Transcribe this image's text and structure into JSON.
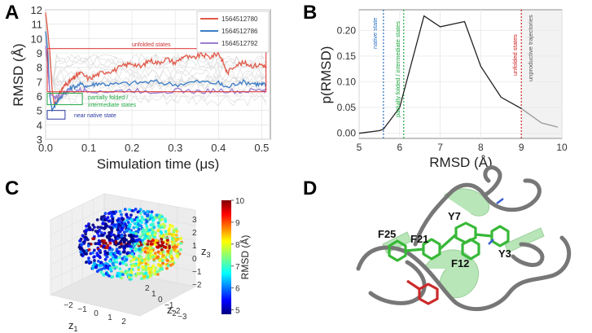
{
  "panels": {
    "a": "A",
    "b": "B",
    "c": "C",
    "d": "D"
  },
  "chart_data": [
    {
      "type": "line",
      "panel": "A",
      "xlabel": "Simulation time (μs)",
      "ylabel": "RMSD (Å)",
      "xlim": [
        0,
        0.52
      ],
      "ylim": [
        3,
        12
      ],
      "xticks": [
        "0.0",
        "0.1",
        "0.2",
        "0.3",
        "0.4",
        "0.5"
      ],
      "yticks": [
        "3",
        "4",
        "5",
        "6",
        "7",
        "8",
        "9",
        "10",
        "11",
        "12"
      ],
      "series": [
        {
          "name": "1564512780",
          "color": "#e05a4a",
          "x": [
            0,
            0.005,
            0.01,
            0.015,
            0.02,
            0.03,
            0.04,
            0.05,
            0.06,
            0.07,
            0.08,
            0.1,
            0.12,
            0.14,
            0.16,
            0.18,
            0.2,
            0.22,
            0.24,
            0.26,
            0.28,
            0.3,
            0.32,
            0.34,
            0.36,
            0.38,
            0.4,
            0.41,
            0.42,
            0.44,
            0.46,
            0.48,
            0.5,
            0.51
          ],
          "y": [
            11.8,
            10.5,
            9.0,
            6.5,
            5.4,
            6.0,
            6.6,
            6.9,
            7.1,
            7.4,
            7.6,
            7.2,
            7.5,
            7.7,
            7.8,
            8.1,
            8.3,
            8.0,
            8.5,
            8.3,
            8.6,
            8.3,
            8.8,
            8.6,
            8.9,
            8.7,
            9.0,
            8.4,
            7.6,
            8.2,
            8.3,
            8.1,
            8.2,
            8.0
          ]
        },
        {
          "name": "1564512786",
          "color": "#3b7cc4",
          "x": [
            0,
            0.005,
            0.01,
            0.015,
            0.02,
            0.03,
            0.04,
            0.05,
            0.06,
            0.08,
            0.1,
            0.12,
            0.15,
            0.2,
            0.25,
            0.3,
            0.35,
            0.4,
            0.42,
            0.45,
            0.48,
            0.5,
            0.51
          ],
          "y": [
            10.5,
            9.0,
            6.0,
            5.0,
            5.3,
            5.8,
            6.1,
            6.4,
            6.6,
            6.8,
            6.7,
            6.9,
            6.8,
            6.9,
            7.0,
            6.8,
            7.0,
            6.9,
            6.6,
            7.0,
            6.9,
            6.8,
            6.8
          ]
        },
        {
          "name": "1564512792",
          "color": "#9b7fd0",
          "x": [
            0,
            0.005,
            0.01,
            0.02,
            0.03,
            0.05,
            0.08,
            0.1,
            0.15,
            0.2,
            0.25,
            0.3,
            0.35,
            0.4,
            0.45,
            0.5,
            0.51
          ],
          "y": [
            9.5,
            8.0,
            6.2,
            5.9,
            6.0,
            6.3,
            6.4,
            6.4,
            6.3,
            6.4,
            6.3,
            6.4,
            6.3,
            6.4,
            6.3,
            6.4,
            6.4
          ]
        }
      ],
      "annotations": {
        "unfolded": "unfolded states",
        "partial": "partially folded /",
        "intermediate": "intermediate states",
        "native": "near native state"
      },
      "regions": [
        {
          "label": "unfolded states",
          "x": [
            0,
            0.51
          ],
          "y": [
            6.3,
            9.3
          ],
          "color": "#e03030"
        },
        {
          "label": "partially folded / intermediate states",
          "x": [
            0,
            0.085
          ],
          "y": [
            5.4,
            6.2
          ],
          "color": "#22aa44"
        },
        {
          "label": "near native state",
          "x": [
            0,
            0.045
          ],
          "y": [
            4.4,
            5.0
          ],
          "color": "#2a3aa0"
        }
      ]
    },
    {
      "type": "line",
      "panel": "B",
      "xlabel": "RMSD (Å)",
      "ylabel": "p(RMSD)",
      "xlim": [
        5,
        10
      ],
      "ylim": [
        -0.01,
        0.24
      ],
      "xticks": [
        "5",
        "6",
        "7",
        "8",
        "9",
        "10"
      ],
      "yticks": [
        "0.00",
        "0.05",
        "0.10",
        "0.15",
        "0.20"
      ],
      "x": [
        5.0,
        5.5,
        5.6,
        6.0,
        6.6,
        7.0,
        7.6,
        8.0,
        8.5,
        9.0,
        9.5,
        9.9
      ],
      "y": [
        0.0,
        0.005,
        0.008,
        0.05,
        0.228,
        0.207,
        0.217,
        0.13,
        0.07,
        0.048,
        0.02,
        0.012
      ],
      "thresholds": [
        {
          "x": 5.6,
          "label": "native state",
          "color": "#2a6fc0"
        },
        {
          "x": 6.1,
          "label": "partially folded / intermediate states",
          "color": "#22aa44"
        },
        {
          "x": 9.0,
          "label": "unfolded states",
          "color": "#cc2222"
        }
      ],
      "unproductive": "unproductive trajectories"
    },
    {
      "type": "scatter",
      "panel": "C",
      "axis_labels": {
        "z1": "z",
        "z2": "z",
        "z3": "z",
        "sub1": "1",
        "sub2": "2",
        "sub3": "3"
      },
      "colorbar_label": "RMSD (Å)",
      "colorbar_ticks": [
        "10",
        "9",
        "8",
        "7",
        "6",
        "5"
      ],
      "colorbar_range": [
        4.8,
        10
      ],
      "z1_ticks": [
        "−2",
        "−1",
        "0",
        "1",
        "2"
      ],
      "z2_ticks": [
        "2",
        "1",
        "0",
        "−1",
        "−2",
        "−3"
      ],
      "z3_ticks": [
        "3",
        "2",
        "1",
        "0",
        "−1",
        "−2"
      ]
    }
  ],
  "protein": {
    "labels": [
      "F25",
      "F21",
      "Y7",
      "F12",
      "Y3"
    ]
  }
}
